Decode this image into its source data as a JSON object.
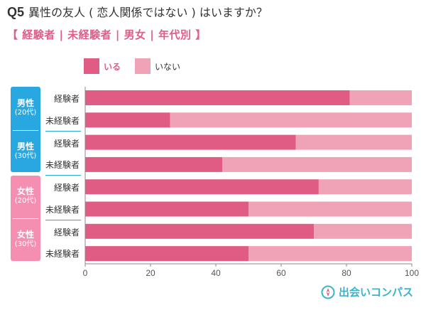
{
  "header": {
    "qnum": "Q5",
    "question": "異性の友人 ( 恋人関係ではない ) はいますか？",
    "subtitle": "【 経験者 | 未経験者 |  男女  |  年代別 】"
  },
  "colors": {
    "primary": "#e15c85",
    "secondary": "#f0a3b7",
    "male_group": "#29a7e1",
    "female_group": "#f58fb2",
    "brand": "#3ab4c9"
  },
  "groups": [
    {
      "main": "男性",
      "sub": "(20代)",
      "color": "blue"
    },
    {
      "main": "男性",
      "sub": "(30代)",
      "color": "blue"
    },
    {
      "main": "女性",
      "sub": "(20代)",
      "color": "pink"
    },
    {
      "main": "女性",
      "sub": "(30代)",
      "color": "pink"
    }
  ],
  "brand": {
    "name": "出会いコンパス",
    "icon": "compass-icon"
  },
  "chart_data": {
    "type": "bar",
    "orientation": "horizontal",
    "stacked": true,
    "categories": [
      "経験者",
      "未経験者",
      "経験者",
      "未経験者",
      "経験者",
      "未経験者",
      "経験者",
      "未経験者"
    ],
    "series": [
      {
        "name": "いる",
        "values": [
          81,
          26,
          64.5,
          42,
          71.5,
          50,
          70,
          50
        ]
      },
      {
        "name": "いない",
        "values": [
          19,
          74,
          35.5,
          58,
          28.5,
          50,
          30,
          50
        ]
      }
    ],
    "xlim": [
      0,
      100
    ],
    "xticks": [
      "0",
      "20",
      "40",
      "60",
      "80",
      "100"
    ],
    "legend": "top-left",
    "grid": false
  }
}
